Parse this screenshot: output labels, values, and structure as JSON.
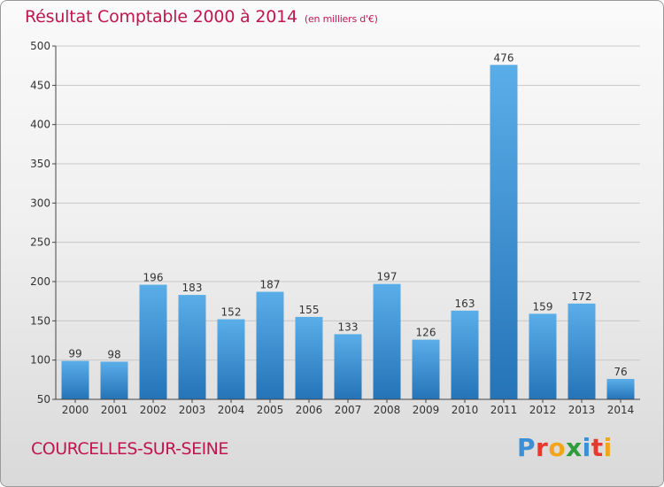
{
  "header": {
    "title": "Résultat Comptable 2000 à 2014",
    "subtitle": "(en milliers d'€)"
  },
  "footer": {
    "commune": "COURCELLES-SUR-SEINE",
    "brand": {
      "letters": [
        {
          "char": "P",
          "color": "#3a8fd6"
        },
        {
          "char": "r",
          "color": "#e6382e"
        },
        {
          "char": "o",
          "color": "#f1a51a"
        },
        {
          "char": "x",
          "color": "#2e9c3a"
        },
        {
          "char": "i",
          "color": "#3a8fd6"
        },
        {
          "char": "t",
          "color": "#e6382e"
        },
        {
          "char": "i",
          "color": "#f1a51a"
        }
      ]
    }
  },
  "colors": {
    "title": "#c0164f",
    "bar_top": "#5aaee8",
    "bar_bottom": "#2673b8",
    "grid": "#c8c8c8",
    "axis": "#444444"
  },
  "chart_data": {
    "type": "bar",
    "categories": [
      "2000",
      "2001",
      "2002",
      "2003",
      "2004",
      "2005",
      "2006",
      "2007",
      "2008",
      "2009",
      "2010",
      "2011",
      "2012",
      "2013",
      "2014"
    ],
    "values": [
      99,
      98,
      196,
      183,
      152,
      187,
      155,
      133,
      197,
      126,
      163,
      476,
      159,
      172,
      76
    ],
    "ylim": [
      50,
      500
    ],
    "yticks": [
      50,
      100,
      150,
      200,
      250,
      300,
      350,
      400,
      450,
      500
    ],
    "grid": true,
    "data_labels": true
  }
}
